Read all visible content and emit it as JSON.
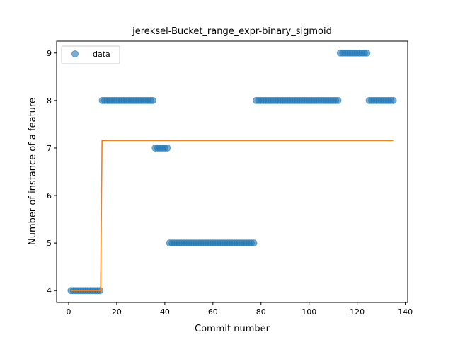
{
  "chart_data": {
    "type": "scatter",
    "title": "jereksel-Bucket_range_expr-binary_sigmoid",
    "xlabel": "Commit number",
    "ylabel": "Number of instance of a feature",
    "xlim": [
      -5,
      141
    ],
    "ylim": [
      3.75,
      9.25
    ],
    "xticks": [
      0,
      20,
      40,
      60,
      80,
      100,
      120,
      140
    ],
    "yticks": [
      4,
      5,
      6,
      7,
      8,
      9
    ],
    "legend": {
      "placement": "top-left",
      "entries": [
        "data"
      ]
    },
    "grid": false,
    "colors": {
      "data": "#1f77b4",
      "fit": "#ff7f0e"
    },
    "series": [
      {
        "name": "data",
        "kind": "scatter",
        "segments": [
          {
            "x_start": 1,
            "x_end": 13,
            "y": 4
          },
          {
            "x_start": 14,
            "x_end": 35,
            "y": 8
          },
          {
            "x_start": 36,
            "x_end": 41,
            "y": 7
          },
          {
            "x_start": 42,
            "x_end": 77,
            "y": 5
          },
          {
            "x_start": 78,
            "x_end": 112,
            "y": 8
          },
          {
            "x_start": 113,
            "x_end": 124,
            "y": 9
          },
          {
            "x_start": 125,
            "x_end": 135,
            "y": 8
          }
        ]
      },
      {
        "kind": "line",
        "x": [
          1,
          13.3,
          13.9,
          135
        ],
        "y": [
          4.0,
          4.0,
          7.16,
          7.16
        ]
      }
    ]
  }
}
